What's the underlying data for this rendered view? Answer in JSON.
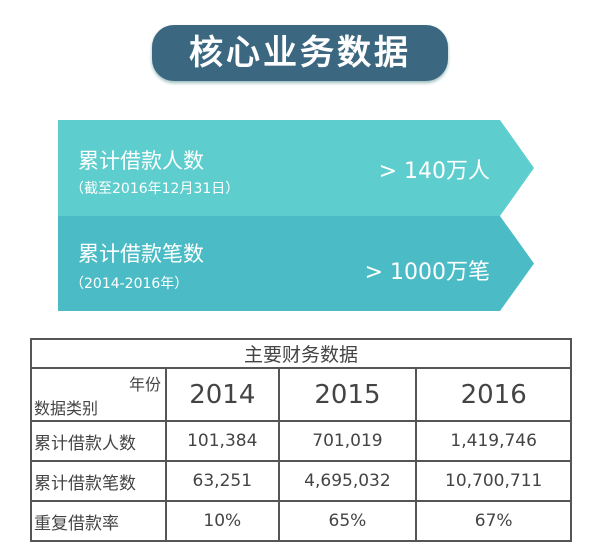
{
  "title": "核心业务数据",
  "banners": [
    {
      "label": "累计借款人数",
      "note": "（截至2016年12月31日）",
      "value": "> 140万人",
      "color": "#5ecdcd"
    },
    {
      "label": "累计借款笔数",
      "note": "（2014-2016年）",
      "value": "> 1000万笔",
      "color": "#4bbcc6"
    }
  ],
  "table": {
    "title": "主要财务数据",
    "corner_top": "年份",
    "corner_bottom": "数据类别",
    "years": [
      "2014",
      "2015",
      "2016"
    ],
    "rows": [
      {
        "label": "累计借款人数",
        "values": [
          "101,384",
          "701,019",
          "1,419,746"
        ]
      },
      {
        "label": "累计借款笔数",
        "values": [
          "63,251",
          "4,695,032",
          "10,700,711"
        ]
      },
      {
        "label": "重复借款率",
        "values": [
          "10%",
          "65%",
          "67%"
        ]
      }
    ]
  }
}
